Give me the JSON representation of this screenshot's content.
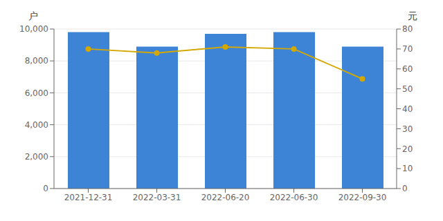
{
  "chart_data": {
    "type": "bar",
    "categories": [
      "2021-12-31",
      "2022-03-31",
      "2022-06-20",
      "2022-06-30",
      "2022-09-30"
    ],
    "series": [
      {
        "type": "bar",
        "color": "#3d84d6",
        "values": [
          9800,
          8900,
          9700,
          9800,
          8900
        ]
      },
      {
        "type": "line",
        "axis": "y2",
        "color": "#d4a800",
        "marker": "circle",
        "values": [
          70,
          68,
          71,
          70,
          55
        ]
      }
    ],
    "ylabel": "户",
    "y2label": "元",
    "ylim": [
      0,
      10000
    ],
    "yticks": [
      0,
      {
        "value": 2000,
        "label": "2,000"
      },
      {
        "value": 4000,
        "label": "4,000"
      },
      {
        "value": 6000,
        "label": "6,000"
      },
      {
        "value": 8000,
        "label": "8,000"
      },
      {
        "value": 10000,
        "label": "10,000"
      }
    ],
    "y2lim": [
      0,
      80
    ],
    "y2ticks": [
      0,
      10,
      20,
      30,
      40,
      50,
      60,
      70,
      80
    ],
    "grid": true
  }
}
